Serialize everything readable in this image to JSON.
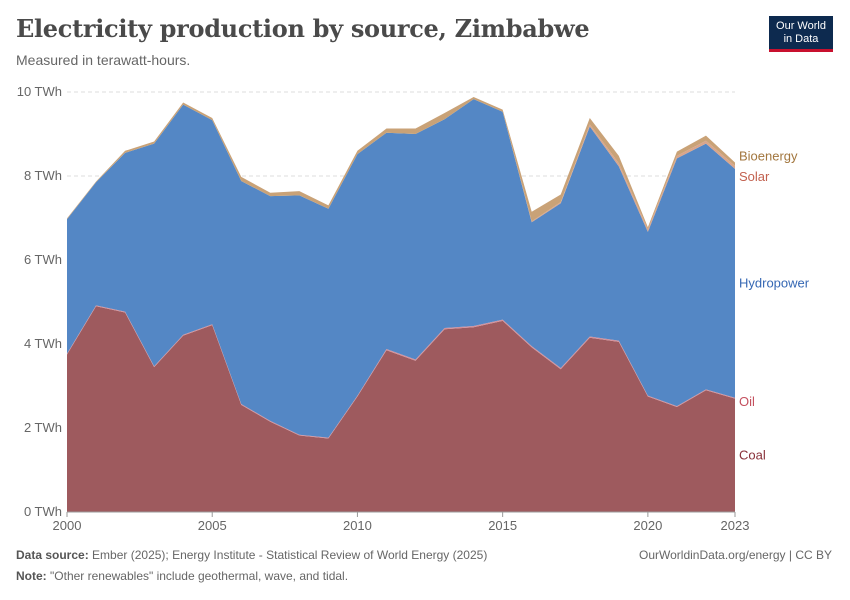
{
  "header": {
    "title": "Electricity production by source, Zimbabwe",
    "subtitle": "Measured in terawatt-hours."
  },
  "logo": {
    "line1": "Our World",
    "line2": "in Data"
  },
  "footer": {
    "source_label": "Data source:",
    "source_text": "Ember (2025); Energy Institute - Statistical Review of World Energy (2025)",
    "note_label": "Note:",
    "note_text": "\"Other renewables\" include geothermal, wave, and tidal.",
    "credit": "OurWorldinData.org/energy | CC BY"
  },
  "chart_data": {
    "type": "area",
    "stacked": true,
    "title": "Electricity production by source, Zimbabwe",
    "ylabel": "TWh",
    "ylim": [
      0,
      10
    ],
    "y_ticks": [
      0,
      2,
      4,
      6,
      8,
      10
    ],
    "y_tick_labels": [
      "0 TWh",
      "2 TWh",
      "4 TWh",
      "6 TWh",
      "8 TWh",
      "10 TWh"
    ],
    "x_ticks": [
      2000,
      2005,
      2010,
      2015,
      2020,
      2023
    ],
    "x_tick_labels": [
      "2000",
      "2005",
      "2010",
      "2015",
      "2020",
      "2023"
    ],
    "x": [
      2000,
      2001,
      2002,
      2003,
      2004,
      2005,
      2006,
      2007,
      2008,
      2009,
      2010,
      2011,
      2012,
      2013,
      2014,
      2015,
      2016,
      2017,
      2018,
      2019,
      2020,
      2021,
      2022,
      2023
    ],
    "series": [
      {
        "name": "Coal",
        "color": "#9e5a5e",
        "label_color": "#883039",
        "values": [
          3.75,
          4.9,
          4.75,
          3.45,
          4.2,
          4.45,
          2.55,
          2.15,
          1.82,
          1.75,
          2.75,
          3.85,
          3.6,
          4.35,
          4.4,
          4.55,
          3.92,
          3.4,
          4.15,
          4.05,
          2.75,
          2.5,
          2.9,
          2.7
        ]
      },
      {
        "name": "Oil",
        "color": "#d4909a",
        "label_color": "#c4505e",
        "values": [
          0.02,
          0.02,
          0.02,
          0.02,
          0.02,
          0.02,
          0.02,
          0.02,
          0.02,
          0.02,
          0.02,
          0.03,
          0.03,
          0.03,
          0.03,
          0.03,
          0.03,
          0.03,
          0.03,
          0.03,
          0.02,
          0.02,
          0.02,
          0.02
        ]
      },
      {
        "name": "Hydropower",
        "color": "#5487c5",
        "label_color": "#3668b4",
        "values": [
          3.2,
          2.93,
          3.78,
          5.3,
          5.48,
          4.86,
          5.31,
          5.35,
          5.7,
          5.45,
          5.75,
          5.15,
          5.37,
          4.97,
          5.4,
          4.95,
          2.95,
          3.92,
          5.0,
          4.15,
          3.9,
          5.9,
          5.85,
          5.45
        ]
      },
      {
        "name": "Solar",
        "color": "#d9a58c",
        "label_color": "#c2614f",
        "values": [
          0,
          0,
          0,
          0,
          0,
          0,
          0,
          0,
          0,
          0,
          0,
          0,
          0,
          0,
          0,
          0,
          0.02,
          0.03,
          0.05,
          0.07,
          0.06,
          0.06,
          0.07,
          0.07
        ]
      },
      {
        "name": "Bioenergy",
        "color": "#c9a277",
        "label_color": "#a2763e",
        "values": [
          0.02,
          0.02,
          0.05,
          0.05,
          0.05,
          0.05,
          0.1,
          0.08,
          0.1,
          0.08,
          0.08,
          0.1,
          0.13,
          0.15,
          0.05,
          0.05,
          0.23,
          0.18,
          0.15,
          0.18,
          0.05,
          0.1,
          0.12,
          0.08
        ]
      }
    ],
    "grid": true,
    "legend": "inline-right"
  }
}
